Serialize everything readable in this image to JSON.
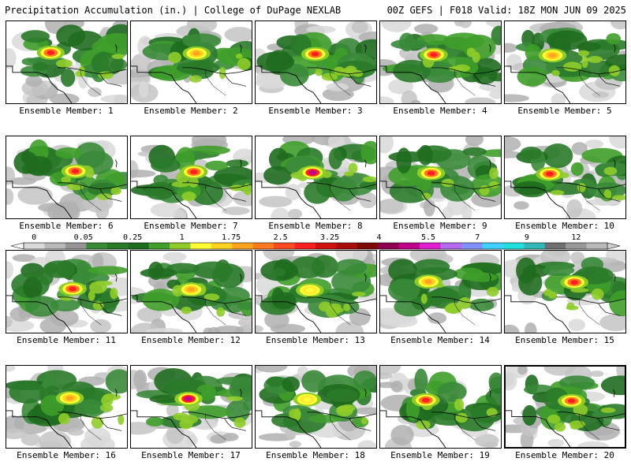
{
  "header": {
    "left_title": "Precipitation Accumulation (in.) | College of DuPage NEXLAB",
    "right_title": "00Z GEFS | F018 Valid: 18Z MON JUN 09 2025"
  },
  "colors": {
    "background": "#ffffff",
    "border": "#000000",
    "land_base": "#e6e6e6"
  },
  "legend": {
    "tick_labels": [
      "0",
      "0.05",
      "0.25",
      "1",
      "1.75",
      "2.5",
      "3.25",
      "4",
      "5.5",
      "7",
      "9",
      "12"
    ],
    "bins": [
      "#d9d9d9",
      "#b9b9b9",
      "#969696",
      "#3a8a3a",
      "#2a7a2a",
      "#1f6b1f",
      "#3f9f2a",
      "#8fcc2a",
      "#ffff33",
      "#ffd21f",
      "#ffa31f",
      "#ff7a1f",
      "#ff4a1f",
      "#ff1f1f",
      "#d11010",
      "#a80b0b",
      "#7e0808",
      "#900050",
      "#c0008a",
      "#e01fd0",
      "#b46af0",
      "#8090ff",
      "#40d0ff",
      "#20e0e0",
      "#30b8b8",
      "#6f6f6f",
      "#999999",
      "#b8b8b8"
    ]
  },
  "panels": [
    {
      "label": "Ensemble Member: 1",
      "peak": "red"
    },
    {
      "label": "Ensemble Member: 2",
      "peak": "orange"
    },
    {
      "label": "Ensemble Member: 3",
      "peak": "red"
    },
    {
      "label": "Ensemble Member: 4",
      "peak": "red"
    },
    {
      "label": "Ensemble Member: 5",
      "peak": "orange"
    },
    {
      "label": "Ensemble Member: 6",
      "peak": "red"
    },
    {
      "label": "Ensemble Member: 7",
      "peak": "red"
    },
    {
      "label": "Ensemble Member: 8",
      "peak": "purple"
    },
    {
      "label": "Ensemble Member: 9",
      "peak": "red"
    },
    {
      "label": "Ensemble Member: 10",
      "peak": "red"
    },
    {
      "label": "Ensemble Member: 11",
      "peak": "red"
    },
    {
      "label": "Ensemble Member: 12",
      "peak": "orange"
    },
    {
      "label": "Ensemble Member: 13",
      "peak": "yellow"
    },
    {
      "label": "Ensemble Member: 14",
      "peak": "orange"
    },
    {
      "label": "Ensemble Member: 15",
      "peak": "red"
    },
    {
      "label": "Ensemble Member: 16",
      "peak": "orange"
    },
    {
      "label": "Ensemble Member: 17",
      "peak": "purple"
    },
    {
      "label": "Ensemble Member: 18",
      "peak": "yellow"
    },
    {
      "label": "Ensemble Member: 19",
      "peak": "red"
    },
    {
      "label": "Ensemble Member: 20",
      "peak": "red"
    }
  ]
}
